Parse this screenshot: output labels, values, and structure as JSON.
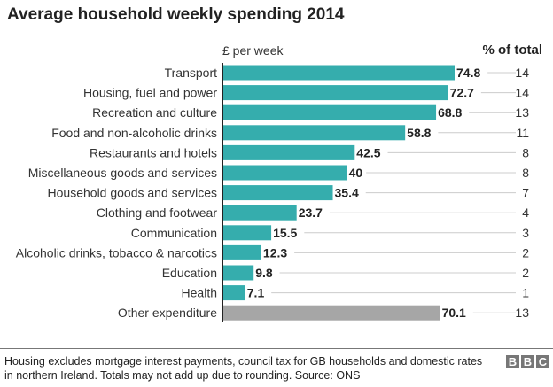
{
  "chart_data": {
    "type": "bar",
    "orientation": "horizontal",
    "title": "Average household weekly spending 2014",
    "xlabel": "£ per week",
    "secondary_column_label": "% of total",
    "categories": [
      "Transport",
      "Housing, fuel and power",
      "Recreation and culture",
      "Food and non-alcoholic drinks",
      "Restaurants and hotels",
      "Miscellaneous goods and services",
      "Household goods and services",
      "Clothing and footwear",
      "Communication",
      "Alcoholic drinks, tobacco & narcotics",
      "Education",
      "Health",
      "Other expenditure"
    ],
    "values": [
      74.8,
      72.7,
      68.8,
      58.8,
      42.5,
      40,
      35.4,
      23.7,
      15.5,
      12.3,
      9.8,
      7.1,
      70.1
    ],
    "percent_of_total": [
      14,
      14,
      13,
      11,
      8,
      8,
      7,
      4,
      3,
      2,
      2,
      1,
      13
    ],
    "colors": {
      "main": "#35adad",
      "other": "#a6a6a6"
    },
    "grid": false
  },
  "footer": {
    "note": "Housing excludes mortgage interest payments, council tax for GB households and domestic rates in northern Ireland. Totals may not add up due to rounding. Source: ONS",
    "logo": [
      "B",
      "B",
      "C"
    ]
  }
}
